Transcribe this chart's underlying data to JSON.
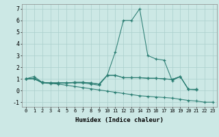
{
  "x_values": [
    0,
    1,
    2,
    3,
    4,
    5,
    6,
    7,
    8,
    9,
    10,
    11,
    12,
    13,
    14,
    15,
    16,
    17,
    18,
    19,
    20,
    21,
    22,
    23
  ],
  "curve_peak": [
    1.0,
    1.2,
    0.7,
    0.65,
    0.65,
    0.65,
    0.65,
    0.65,
    0.55,
    0.45,
    1.3,
    3.3,
    6.0,
    6.0,
    7.0,
    3.0,
    2.7,
    2.6,
    0.85,
    1.2,
    0.1,
    0.05,
    null,
    null
  ],
  "curve_flat1": [
    1.0,
    1.05,
    0.7,
    0.65,
    0.65,
    0.65,
    0.7,
    0.7,
    0.65,
    0.55,
    1.3,
    1.3,
    1.1,
    1.1,
    1.1,
    1.05,
    1.05,
    1.0,
    0.95,
    1.2,
    0.1,
    0.1,
    null,
    null
  ],
  "curve_flat2": [
    1.0,
    1.0,
    0.7,
    0.65,
    0.65,
    0.65,
    0.7,
    0.7,
    0.65,
    0.55,
    1.3,
    1.3,
    1.1,
    1.1,
    1.1,
    1.05,
    1.05,
    1.0,
    0.95,
    1.2,
    0.1,
    0.1,
    null,
    null
  ],
  "curve_decline": [
    1.0,
    1.0,
    0.65,
    0.6,
    0.55,
    0.45,
    0.35,
    0.25,
    0.15,
    0.05,
    -0.05,
    -0.15,
    -0.25,
    -0.35,
    -0.45,
    -0.5,
    -0.55,
    -0.6,
    -0.65,
    -0.75,
    -0.85,
    -0.9,
    -1.0,
    -1.0
  ],
  "color": "#2a7d72",
  "bgcolor": "#cce8e5",
  "grid_color": "#aacfcc",
  "xlabel": "Humidex (Indice chaleur)",
  "xlim": [
    -0.5,
    23.5
  ],
  "ylim": [
    -1.4,
    7.4
  ],
  "yticks": [
    -1,
    0,
    1,
    2,
    3,
    4,
    5,
    6,
    7
  ],
  "xticks": [
    0,
    1,
    2,
    3,
    4,
    5,
    6,
    7,
    8,
    9,
    10,
    11,
    12,
    13,
    14,
    15,
    16,
    17,
    18,
    19,
    20,
    21,
    22,
    23
  ]
}
